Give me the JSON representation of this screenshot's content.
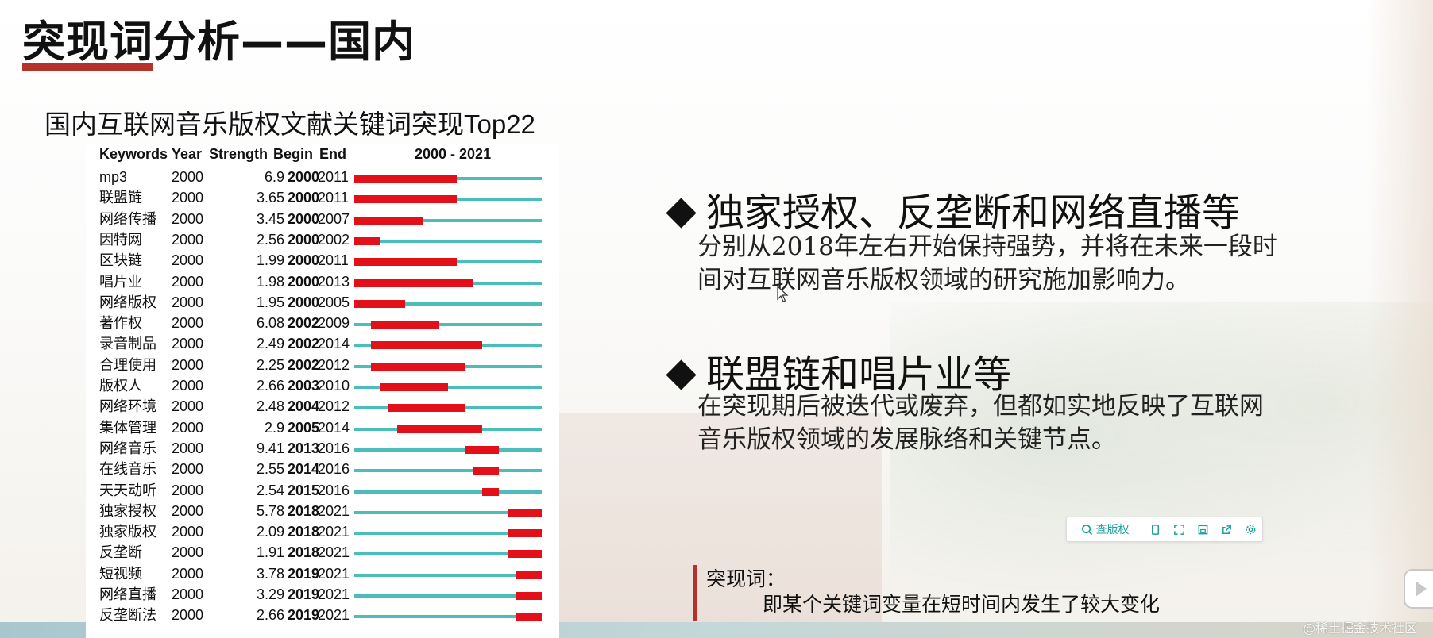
{
  "slide": {
    "title": "突现词分析——国内",
    "figure_caption": "国内互联网音乐版权文献关键词突现Top22"
  },
  "table": {
    "headers": {
      "keywords": "Keywords",
      "year": "Year",
      "strength": "Strength",
      "begin": "Begin",
      "end": "End",
      "range": "2000 - 2021"
    },
    "range_start": 2000,
    "range_end": 2021,
    "rows": [
      {
        "keyword": "mp3",
        "year": "2000",
        "strength": "6.9",
        "begin": "2000",
        "end": "2011"
      },
      {
        "keyword": "联盟链",
        "year": "2000",
        "strength": "3.65",
        "begin": "2000",
        "end": "2011"
      },
      {
        "keyword": "网络传播",
        "year": "2000",
        "strength": "3.45",
        "begin": "2000",
        "end": "2007"
      },
      {
        "keyword": "因特网",
        "year": "2000",
        "strength": "2.56",
        "begin": "2000",
        "end": "2002"
      },
      {
        "keyword": "区块链",
        "year": "2000",
        "strength": "1.99",
        "begin": "2000",
        "end": "2011"
      },
      {
        "keyword": "唱片业",
        "year": "2000",
        "strength": "1.98",
        "begin": "2000",
        "end": "2013"
      },
      {
        "keyword": "网络版权",
        "year": "2000",
        "strength": "1.95",
        "begin": "2000",
        "end": "2005"
      },
      {
        "keyword": "著作权",
        "year": "2000",
        "strength": "6.08",
        "begin": "2002",
        "end": "2009"
      },
      {
        "keyword": "录音制品",
        "year": "2000",
        "strength": "2.49",
        "begin": "2002",
        "end": "2014"
      },
      {
        "keyword": "合理使用",
        "year": "2000",
        "strength": "2.25",
        "begin": "2002",
        "end": "2012"
      },
      {
        "keyword": "版权人",
        "year": "2000",
        "strength": "2.66",
        "begin": "2003",
        "end": "2010"
      },
      {
        "keyword": "网络环境",
        "year": "2000",
        "strength": "2.48",
        "begin": "2004",
        "end": "2012"
      },
      {
        "keyword": "集体管理",
        "year": "2000",
        "strength": "2.9",
        "begin": "2005",
        "end": "2014"
      },
      {
        "keyword": "网络音乐",
        "year": "2000",
        "strength": "9.41",
        "begin": "2013",
        "end": "2016"
      },
      {
        "keyword": "在线音乐",
        "year": "2000",
        "strength": "2.55",
        "begin": "2014",
        "end": "2016"
      },
      {
        "keyword": "天天动听",
        "year": "2000",
        "strength": "2.54",
        "begin": "2015",
        "end": "2016"
      },
      {
        "keyword": "独家授权",
        "year": "2000",
        "strength": "5.78",
        "begin": "2018",
        "end": "2021"
      },
      {
        "keyword": "独家版权",
        "year": "2000",
        "strength": "2.09",
        "begin": "2018",
        "end": "2021"
      },
      {
        "keyword": "反垄断",
        "year": "2000",
        "strength": "1.91",
        "begin": "2018",
        "end": "2021"
      },
      {
        "keyword": "短视频",
        "year": "2000",
        "strength": "3.78",
        "begin": "2019",
        "end": "2021"
      },
      {
        "keyword": "网络直播",
        "year": "2000",
        "strength": "3.29",
        "begin": "2019",
        "end": "2021"
      },
      {
        "keyword": "反垄断法",
        "year": "2000",
        "strength": "2.66",
        "begin": "2019",
        "end": "2021"
      }
    ]
  },
  "bullets": [
    {
      "heading": "独家授权、反垄断和网络直播等",
      "body": [
        "分别从2018年左右开始保持强势，并将在未来一段时",
        "间对互联网音乐版权领域的研究施加影响力。"
      ]
    },
    {
      "heading": "联盟链和唱片业等",
      "body": [
        "在突现期后被迭代或废弃，但都如实地反映了互联网",
        "音乐版权领域的发展脉络和关键节点。"
      ]
    }
  ],
  "note": {
    "label": "突现词：",
    "text": "即某个关键词变量在短时间内发生了较大变化"
  },
  "toolbar": {
    "main_label": "查版权",
    "icons": [
      "search-icon",
      "copy-icon",
      "expand-icon",
      "save-icon",
      "share-icon",
      "settings-icon"
    ],
    "accent": "#1aa09b"
  },
  "watermark": "@稀土掘金技术社区",
  "colors": {
    "accent_red": "#b5322a",
    "burst_red": "#e3101a",
    "track_teal": "#4bbdbb"
  }
}
